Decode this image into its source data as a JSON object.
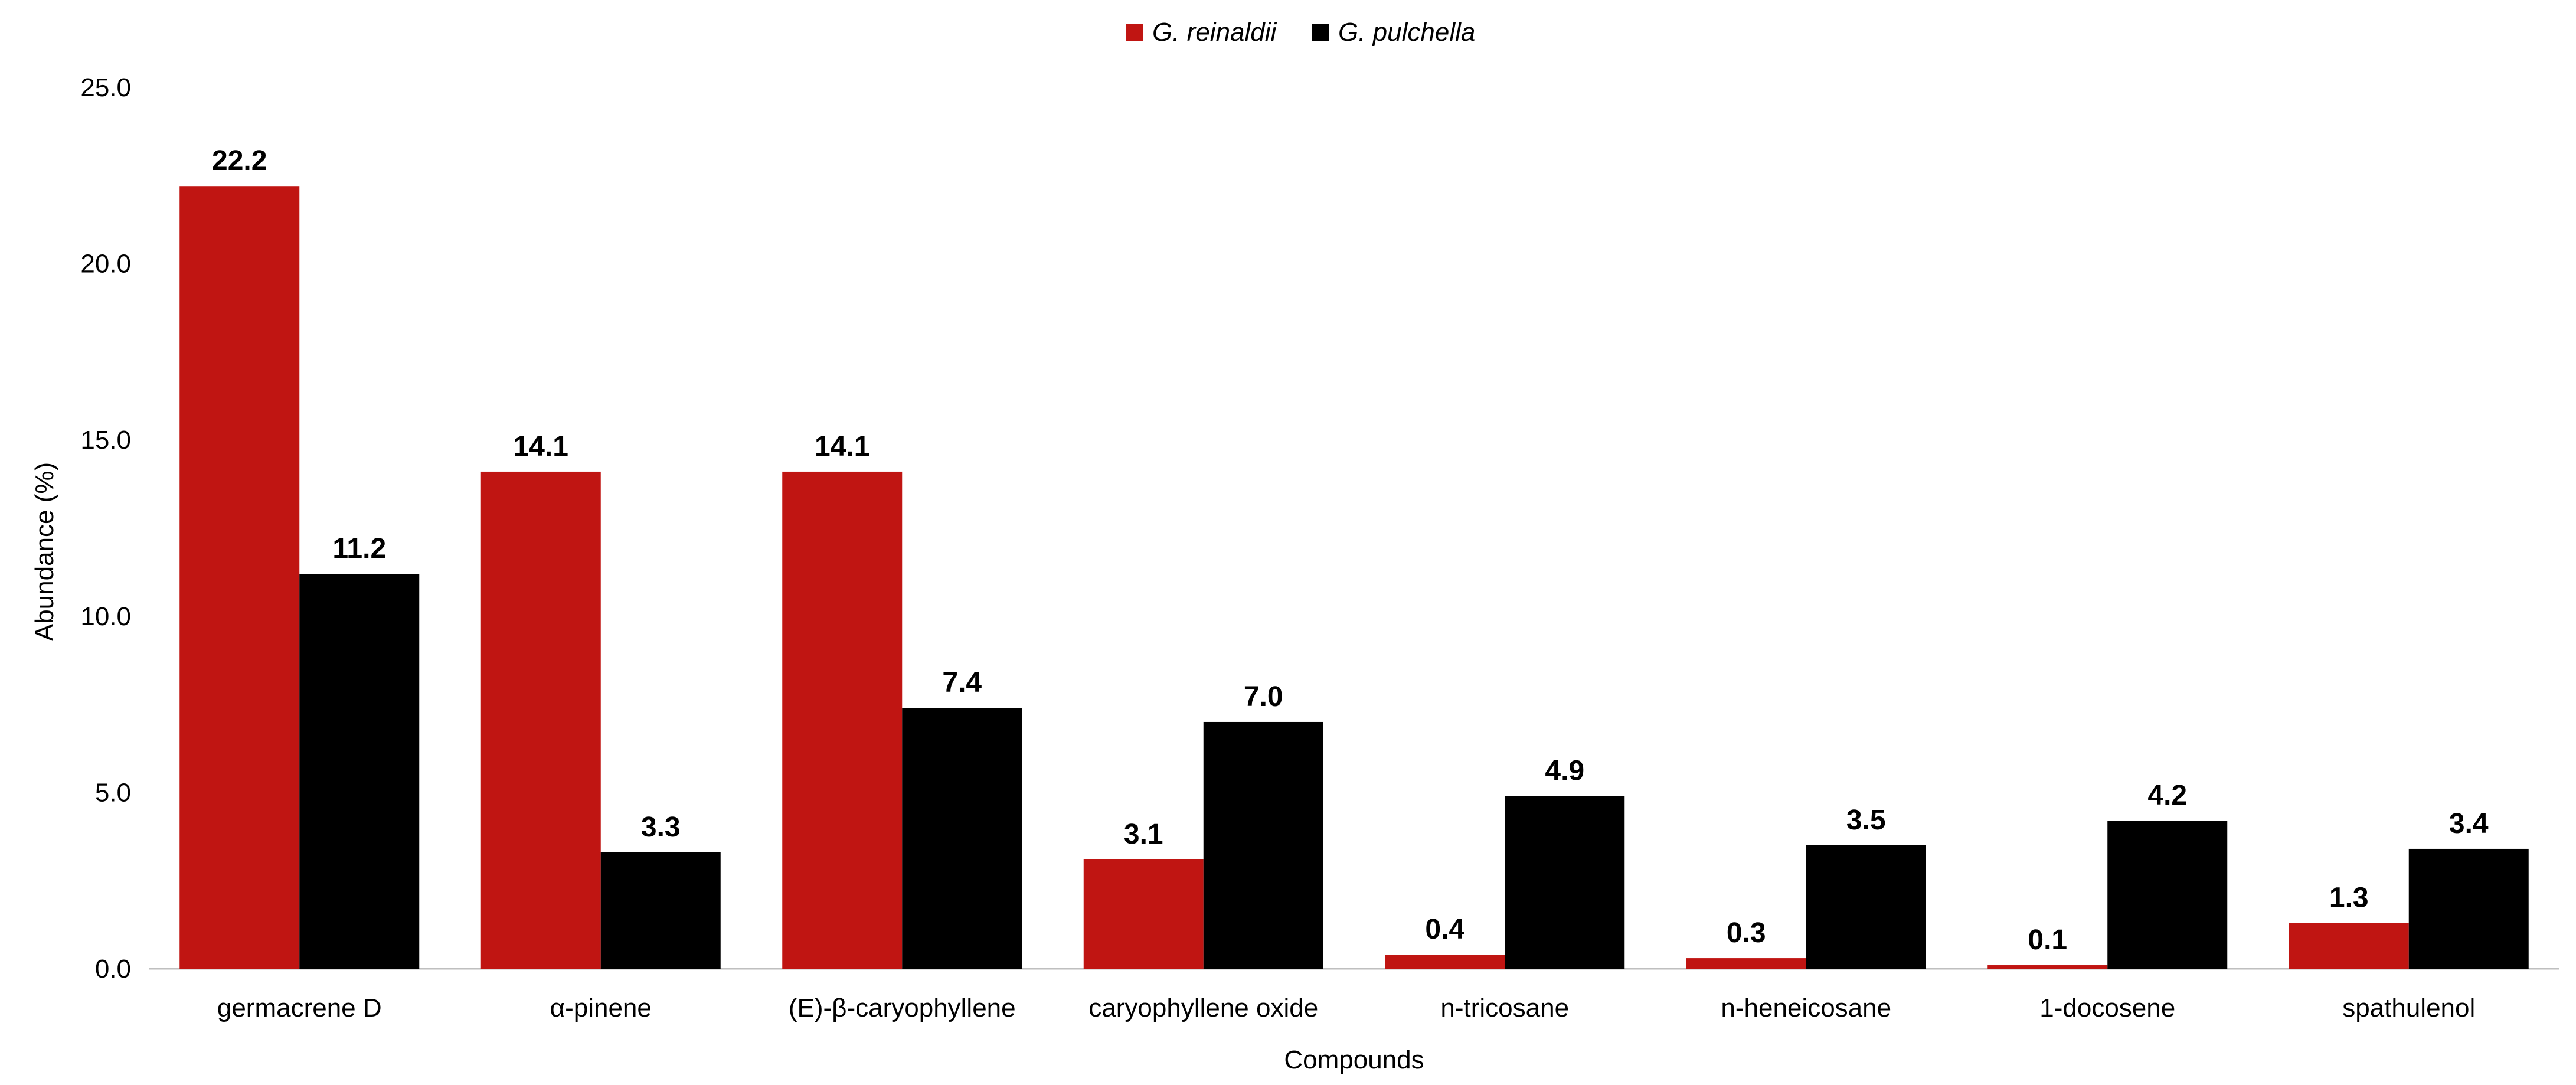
{
  "chart_data": {
    "type": "bar",
    "xlabel": "Compounds",
    "ylabel": "Abundance (%)",
    "ylim": [
      0,
      25
    ],
    "yticks": [
      "0.0",
      "5.0",
      "10.0",
      "15.0",
      "20.0",
      "25.0"
    ],
    "grid": false,
    "legend": "top-center",
    "categories": [
      "germacrene D",
      "α-pinene",
      "(E)-β-caryophyllene",
      "caryophyllene oxide",
      "n-tricosane",
      "n-heneicosane",
      "1-docosene",
      "spathulenol"
    ],
    "series": [
      {
        "name": "G. reinaldii",
        "color": "#C01512",
        "values": [
          22.2,
          14.1,
          14.1,
          3.1,
          0.4,
          0.3,
          0.1,
          1.3
        ],
        "labels": [
          "22.2",
          "14.1",
          "14.1",
          "3.1",
          "0.4",
          "0.3",
          "0.1",
          "1.3"
        ]
      },
      {
        "name": "G. pulchella",
        "color": "#000000",
        "values": [
          11.2,
          3.3,
          7.4,
          7.0,
          4.9,
          3.5,
          4.2,
          3.4
        ],
        "labels": [
          "11.2",
          "3.3",
          "7.4",
          "7.0",
          "4.9",
          "3.5",
          "4.2",
          "3.4"
        ]
      }
    ]
  }
}
